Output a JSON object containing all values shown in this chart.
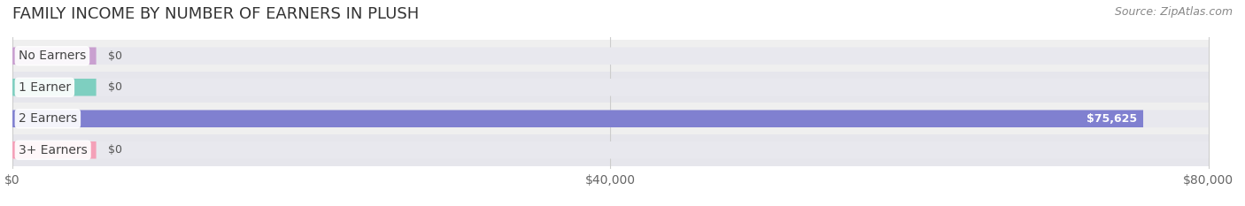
{
  "title": "FAMILY INCOME BY NUMBER OF EARNERS IN PLUSH",
  "source": "Source: ZipAtlas.com",
  "categories": [
    "No Earners",
    "1 Earner",
    "2 Earners",
    "3+ Earners"
  ],
  "values": [
    0,
    0,
    75625,
    0
  ],
  "max_value": 80000,
  "bar_colors": [
    "#c9a0d0",
    "#7ecfc0",
    "#8080d0",
    "#f4a0b8"
  ],
  "bar_bg_color": "#e8e8ee",
  "label_bg_color": "#ffffff",
  "bar_height": 0.55,
  "value_labels": [
    "$0",
    "$0",
    "$75,625",
    "$0"
  ],
  "xtick_labels": [
    "$0",
    "$40,000",
    "$80,000"
  ],
  "xtick_values": [
    0,
    40000,
    80000
  ],
  "fig_bg_color": "#ffffff",
  "row_bg_colors": [
    "#f0f0f5",
    "#e8e8ee"
  ],
  "title_fontsize": 13,
  "label_fontsize": 10,
  "value_fontsize": 9,
  "source_fontsize": 9
}
